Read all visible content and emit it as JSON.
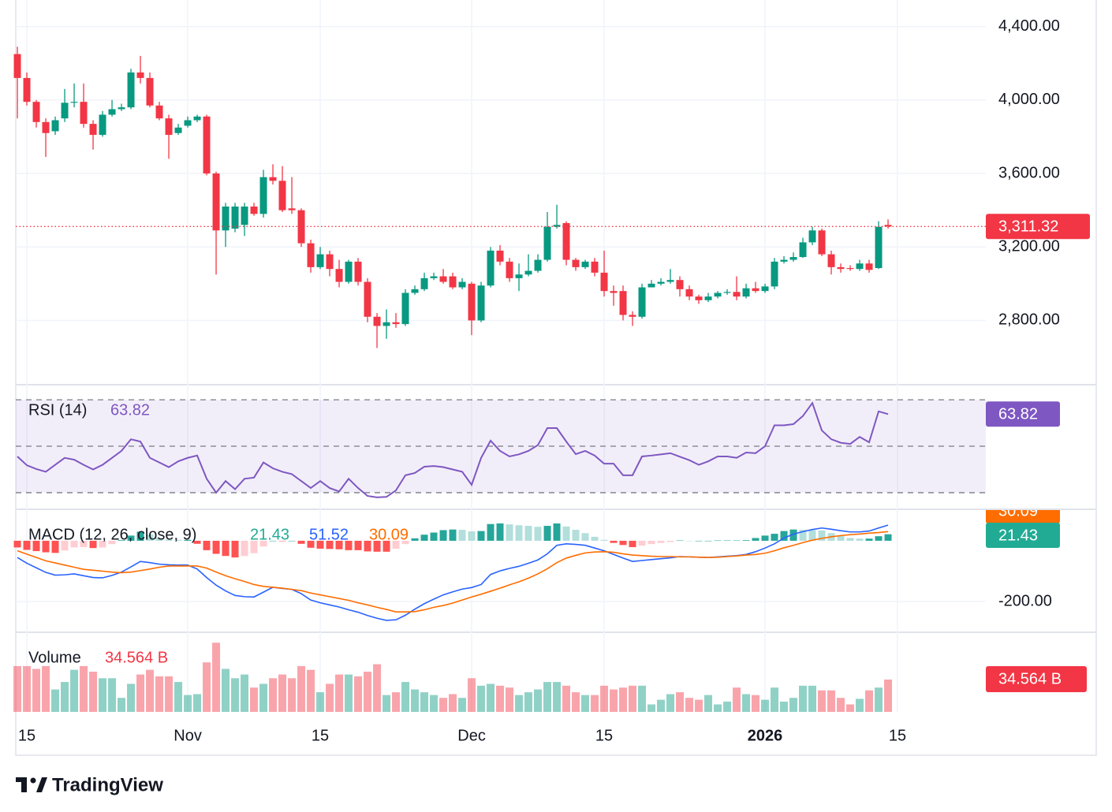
{
  "chart_data": [
    {
      "type": "candlestick",
      "up_color": "#089981",
      "down_color": "#f23645",
      "open": [
        4250,
        4120,
        3990,
        3880,
        3830,
        3900,
        3985,
        3990,
        3870,
        3810,
        3920,
        3950,
        3960,
        4150,
        4120,
        3970,
        3900,
        3820,
        3860,
        3890,
        3910,
        3600,
        3290,
        3300,
        3320,
        3420,
        3380,
        3580,
        3560,
        3410,
        3400,
        3220,
        3090,
        3160,
        3080,
        3010,
        3120,
        3010,
        2820,
        2770,
        2790,
        2780,
        2950,
        2970,
        3030,
        3040,
        3040,
        2980,
        3000,
        2800,
        2990,
        3180,
        3120,
        3030,
        3050,
        3070,
        3130,
        3310,
        3330,
        3130,
        3090,
        3120,
        3060,
        2960,
        2960,
        2830,
        2820,
        2980,
        3000,
        3010,
        3020,
        2970,
        2930,
        2910,
        2930,
        2950,
        2955,
        2930,
        2975,
        2960,
        2985,
        3120,
        3130,
        3145,
        3225,
        3290,
        3160,
        3090,
        3085,
        3080,
        3110,
        3085,
        3320
      ],
      "high": [
        4290,
        4150,
        4000,
        3900,
        3910,
        4060,
        4090,
        4090,
        3890,
        3940,
        4000,
        3980,
        4170,
        4240,
        4150,
        3990,
        3920,
        3870,
        3910,
        3920,
        3920,
        3610,
        3440,
        3440,
        3440,
        3440,
        3620,
        3650,
        3640,
        3580,
        3410,
        3240,
        3200,
        3180,
        3130,
        3130,
        3140,
        3030,
        2840,
        2860,
        2840,
        2970,
        2990,
        3060,
        3060,
        3080,
        3060,
        3030,
        3010,
        3010,
        3200,
        3210,
        3140,
        3110,
        3160,
        3160,
        3390,
        3430,
        3340,
        3140,
        3130,
        3140,
        3180,
        2990,
        2990,
        2850,
        3000,
        3020,
        3030,
        3080,
        3040,
        2990,
        2940,
        2950,
        2960,
        2970,
        3040,
        3000,
        3010,
        3000,
        3140,
        3150,
        3170,
        3250,
        3310,
        3300,
        3180,
        3110,
        3100,
        3130,
        3130,
        3340,
        3350
      ],
      "low": [
        3900,
        3970,
        3850,
        3690,
        3810,
        3880,
        3960,
        3850,
        3730,
        3800,
        3910,
        3940,
        3950,
        4090,
        3960,
        3890,
        3680,
        3810,
        3850,
        3880,
        3590,
        3050,
        3200,
        3280,
        3260,
        3370,
        3360,
        3540,
        3390,
        3380,
        3200,
        3060,
        3080,
        3040,
        2980,
        3000,
        2990,
        2790,
        2650,
        2700,
        2760,
        2770,
        2940,
        2960,
        3020,
        3000,
        2970,
        2970,
        2720,
        2790,
        2980,
        3100,
        3010,
        2960,
        3040,
        3060,
        3120,
        3300,
        3100,
        3070,
        3080,
        3040,
        2930,
        2880,
        2800,
        2770,
        2810,
        2980,
        2990,
        3000,
        2930,
        2910,
        2890,
        2900,
        2920,
        2940,
        2910,
        2920,
        2950,
        2950,
        2970,
        3110,
        3120,
        3140,
        3210,
        3150,
        3050,
        3060,
        3070,
        3070,
        3060,
        3080,
        3300
      ],
      "close": [
        4120,
        3990,
        3880,
        3820,
        3890,
        3985,
        3990,
        3870,
        3810,
        3920,
        3950,
        3960,
        4150,
        4120,
        3970,
        3900,
        3810,
        3850,
        3890,
        3910,
        3600,
        3290,
        3420,
        3420,
        3420,
        3380,
        3580,
        3560,
        3400,
        3400,
        3220,
        3090,
        3160,
        3080,
        3010,
        3120,
        3010,
        2820,
        2770,
        2790,
        2780,
        2950,
        2970,
        3030,
        3040,
        3010,
        2980,
        3010,
        2800,
        2990,
        3180,
        3120,
        3030,
        3050,
        3070,
        3130,
        3310,
        3320,
        3130,
        3090,
        3120,
        3060,
        2960,
        2950,
        2830,
        2820,
        2980,
        3000,
        3010,
        3020,
        2970,
        2930,
        2910,
        2930,
        2950,
        2955,
        2930,
        2975,
        2960,
        2985,
        3120,
        3130,
        3145,
        3225,
        3290,
        3160,
        3090,
        3080,
        3080,
        3110,
        3075,
        3310,
        3311.32
      ],
      "last_label": "3,311.32",
      "ylim": [
        2450,
        4480
      ],
      "yticks": [
        {
          "value": 4400,
          "label": "4,400.00"
        },
        {
          "value": 4000,
          "label": "4,000.00"
        },
        {
          "value": 3600,
          "label": "3,600.00"
        },
        {
          "value": 3200,
          "label": "3,200.00"
        },
        {
          "value": 2800,
          "label": "2,800.00"
        }
      ],
      "xlim": [
        -0.17,
        102.33
      ],
      "xticks": [
        {
          "value": 1,
          "label": "15"
        },
        {
          "value": 18,
          "label": "Nov"
        },
        {
          "value": 32,
          "label": "15"
        },
        {
          "value": 48,
          "label": "Dec"
        },
        {
          "value": 62,
          "label": "15"
        },
        {
          "value": 79,
          "label": "2026"
        },
        {
          "value": 93,
          "label": "15"
        }
      ],
      "bold_xticks": [
        5
      ],
      "grid": true
    },
    {
      "type": "line",
      "title": "RSI (14)",
      "color": "#7e57c2",
      "band_fill": "rgba(126,87,194,0.1)",
      "values": [
        45.6,
        41.8,
        40.2,
        39,
        42,
        45,
        44.2,
        42,
        40,
        42,
        45,
        48,
        53,
        52,
        45,
        43,
        41,
        43.5,
        45,
        46,
        36,
        30,
        35,
        31.5,
        36,
        36.5,
        43,
        40.5,
        39,
        38,
        35,
        32,
        35,
        32,
        30.5,
        36,
        32,
        28.6,
        28,
        28.2,
        31,
        37.5,
        38.5,
        41.2,
        41.5,
        41,
        40,
        39,
        33.4,
        45,
        52.4,
        48,
        45.6,
        46.5,
        48,
        50.5,
        57.8,
        57.8,
        52,
        46.6,
        48,
        46,
        42.5,
        42.5,
        37.5,
        37.5,
        45.6,
        46,
        46.5,
        47,
        45.5,
        44,
        42,
        43.5,
        45.6,
        45.6,
        45,
        47.3,
        47,
        50,
        59,
        59,
        59.5,
        63,
        68.6,
        56.8,
        53,
        51.5,
        51,
        54,
        51.7,
        65,
        63.82
      ],
      "ylim": [
        23.2,
        75.8
      ],
      "bands": [
        30,
        50,
        70
      ]
    },
    {
      "type": "macd",
      "title": "MACD (12, 26, close, 9)",
      "histogram": {
        "colors": {
          "up_grow": "#26a69a",
          "up_fall": "#b2dfdb",
          "down_grow": "#ff5252",
          "down_fall": "#ffcdd2"
        },
        "legend_color": "#22ab94",
        "values": [
          -22,
          -30,
          -34,
          -38,
          -40,
          -32,
          -22,
          -21,
          -24,
          -22,
          -11,
          2,
          17,
          30,
          21,
          10,
          4,
          3,
          3,
          -10,
          -31,
          -43,
          -50,
          -55,
          -50,
          -41,
          -19,
          0,
          -1,
          0,
          -10,
          -23,
          -26,
          -27,
          -28,
          -31,
          -31,
          -35,
          -36,
          -36,
          -26,
          -11,
          8,
          20,
          27,
          35,
          37,
          36,
          31,
          32,
          55,
          57,
          54,
          51,
          49,
          46,
          49,
          57,
          47,
          36,
          25,
          13,
          3,
          -7,
          -14,
          -21,
          -16,
          -11,
          -7,
          -4,
          1,
          0,
          0,
          0,
          1,
          1,
          1,
          2,
          9,
          17,
          23,
          32,
          37,
          36,
          35,
          34,
          25,
          16,
          9,
          7,
          7,
          15,
          21.43
        ]
      },
      "macd": {
        "color": "#2962ff",
        "values": [
          -55,
          -74,
          -89,
          -104,
          -113,
          -112,
          -109,
          -115,
          -121,
          -122,
          -114,
          -103,
          -86,
          -68,
          -72,
          -77,
          -79,
          -80,
          -80,
          -93,
          -121,
          -146,
          -165,
          -180,
          -184,
          -185,
          -169,
          -153,
          -157,
          -160,
          -174,
          -195,
          -204,
          -211,
          -218,
          -227,
          -235,
          -246,
          -255,
          -262,
          -260,
          -245,
          -225,
          -207,
          -192,
          -178,
          -168,
          -159,
          -154,
          -144,
          -111,
          -99,
          -91,
          -84,
          -74,
          -63,
          -43,
          -15,
          -10,
          -12,
          -15,
          -24,
          -33,
          -45,
          -57,
          -68,
          -65,
          -62,
          -59,
          -56,
          -52,
          -53,
          -54,
          -55,
          -53,
          -51,
          -49,
          -45,
          -36,
          -24,
          -10,
          9,
          22,
          30,
          37,
          42,
          38,
          33,
          29,
          29,
          32,
          42,
          51.52
        ]
      },
      "signal": {
        "color": "#ff6d00",
        "values": [
          -33,
          -44,
          -55,
          -66,
          -73,
          -80,
          -87,
          -94,
          -97,
          -100,
          -103,
          -105,
          -103,
          -98,
          -93,
          -87,
          -83,
          -83,
          -83,
          -83,
          -90,
          -103,
          -115,
          -125,
          -134,
          -144,
          -150,
          -153,
          -156,
          -160,
          -164,
          -172,
          -178,
          -184,
          -190,
          -196,
          -204,
          -211,
          -219,
          -226,
          -234,
          -234,
          -233,
          -227,
          -219,
          -213,
          -205,
          -195,
          -185,
          -176,
          -166,
          -156,
          -145,
          -135,
          -123,
          -109,
          -92,
          -72,
          -57,
          -48,
          -40,
          -37,
          -36,
          -38,
          -43,
          -47,
          -49,
          -51,
          -52,
          -52,
          -53,
          -53,
          -54,
          -55,
          -54,
          -52,
          -50,
          -47,
          -45,
          -41,
          -33,
          -23,
          -15,
          -6,
          2,
          8,
          13,
          17,
          20,
          22,
          25,
          27,
          30.09
        ]
      },
      "ylim": [
        -301,
        101
      ],
      "yticks": [
        {
          "value": -200,
          "label": "-200.00"
        }
      ]
    },
    {
      "type": "bar",
      "title": "Volume",
      "up_color": "rgba(8,153,129,0.45)",
      "down_color": "rgba(242,54,69,0.45)",
      "values": [
        49,
        49,
        46,
        49,
        24,
        32,
        45,
        49,
        43,
        36,
        36,
        15,
        30,
        40,
        45,
        38,
        38,
        32,
        18,
        19,
        53,
        74,
        46,
        36,
        40,
        26,
        30,
        36,
        40,
        36,
        49,
        45,
        21,
        30,
        40,
        40,
        38,
        43,
        51,
        18,
        21,
        32,
        24,
        21,
        18,
        15,
        19,
        15,
        36,
        28,
        30,
        28,
        26,
        18,
        21,
        24,
        32,
        32,
        28,
        21,
        18,
        18,
        28,
        24,
        26,
        28,
        28,
        8,
        13,
        19,
        21,
        15,
        13,
        18,
        8,
        11,
        26,
        19,
        18,
        13,
        26,
        11,
        15,
        28,
        28,
        23,
        23,
        15,
        8,
        14,
        23,
        26,
        34.564
      ],
      "last_label": "34.564 B",
      "ylim": [
        0,
        83.5
      ]
    }
  ],
  "logo": "TradingView"
}
